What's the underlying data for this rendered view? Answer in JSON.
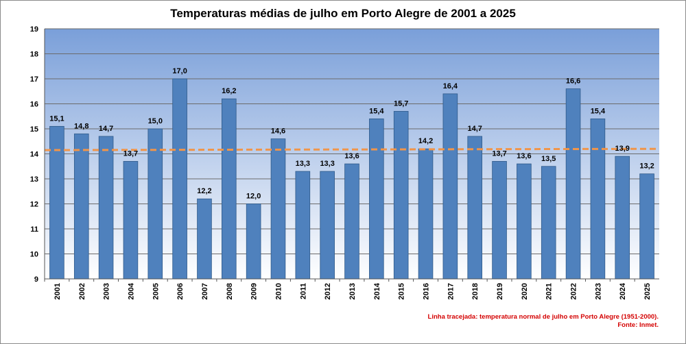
{
  "chart_data": {
    "type": "bar",
    "title": "Temperaturas médias de julho em Porto Alegre de 2001 a 2025",
    "xlabel": "",
    "ylabel": "",
    "categories": [
      "2001",
      "2002",
      "2003",
      "2004",
      "2005",
      "2006",
      "2007",
      "2008",
      "2009",
      "2010",
      "2011",
      "2012",
      "2013",
      "2014",
      "2015",
      "2016",
      "2017",
      "2018",
      "2019",
      "2020",
      "2021",
      "2022",
      "2023",
      "2024",
      "2025"
    ],
    "values": [
      15.1,
      14.8,
      14.7,
      13.7,
      15.0,
      17.0,
      12.2,
      16.2,
      12.0,
      14.6,
      13.3,
      13.3,
      13.6,
      15.4,
      15.7,
      14.2,
      16.4,
      14.7,
      13.7,
      13.6,
      13.5,
      16.6,
      15.4,
      13.9,
      13.2
    ],
    "data_labels": [
      "15,1",
      "14,8",
      "14,7",
      "13,7",
      "15,0",
      "17,0",
      "12,2",
      "16,2",
      "12,0",
      "14,6",
      "13,3",
      "13,3",
      "13,6",
      "15,4",
      "15,7",
      "14,2",
      "16,4",
      "14,7",
      "13,7",
      "13,6",
      "13,5",
      "16,6",
      "15,4",
      "13,9",
      "13,2"
    ],
    "ylim": [
      9,
      19
    ],
    "yticks": [
      "9",
      "10",
      "11",
      "12",
      "13",
      "14",
      "15",
      "16",
      "17",
      "18",
      "19"
    ],
    "grid": true,
    "reference_line": {
      "label": "temperatura normal de julho em Porto Alegre (1951-2000)",
      "value_start": 14.15,
      "value_end": 14.2,
      "style": "dashed",
      "color": "#f0954a"
    },
    "colors": {
      "bar": "#4f81bd",
      "bar_border": "#2f5a8a",
      "plot_top": "#7a9fd9",
      "plot_bottom": "#ffffff",
      "note": "#d40000"
    }
  },
  "note": {
    "line1": "Linha tracejada: temperatura normal de julho em Porto Alegre (1951-2000).",
    "line2": "Fonte: Inmet."
  }
}
